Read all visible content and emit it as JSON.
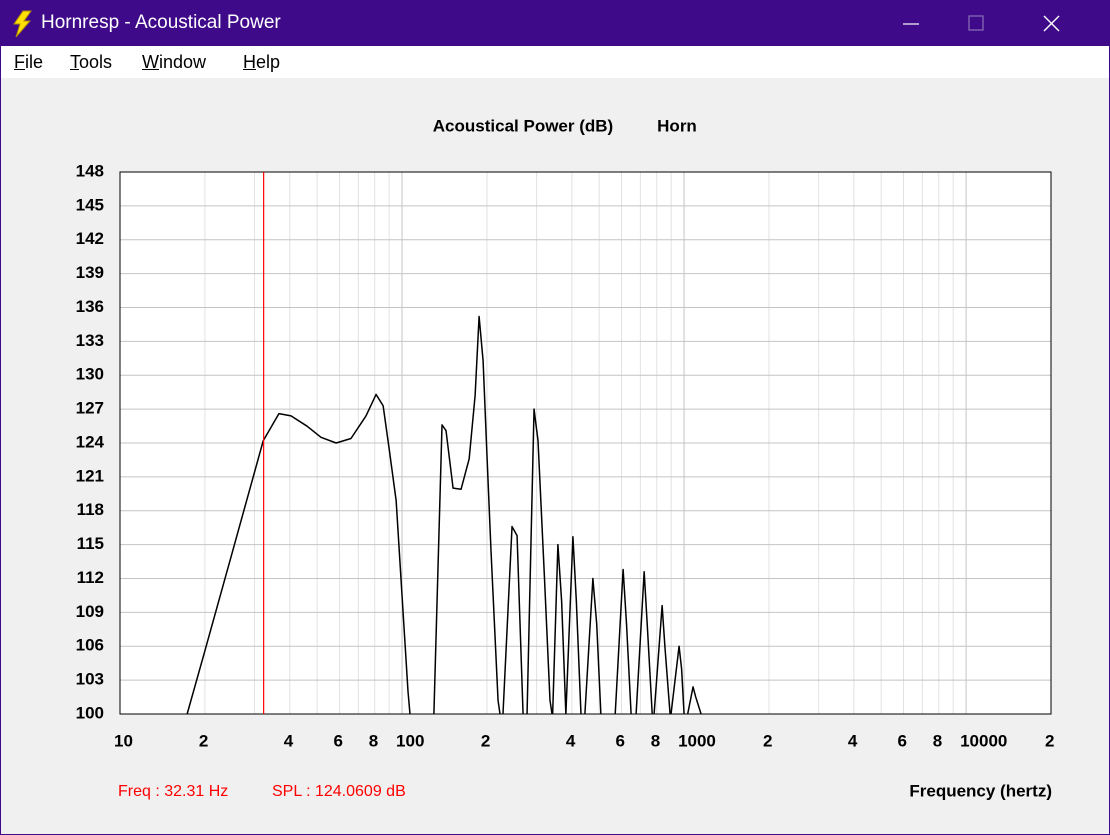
{
  "window": {
    "title": "Hornresp - Acoustical Power"
  },
  "menu": [
    "File",
    "Tools",
    "Window",
    "Help"
  ],
  "chart_data": {
    "type": "line",
    "title": "Acoustical Power (dB)",
    "subtitle": "Horn",
    "x_label": "Frequency (hertz)",
    "xscale": "log",
    "xlim": [
      10,
      20000
    ],
    "ylim": [
      100,
      148
    ],
    "xticks": [
      10,
      {
        "value": 20,
        "label": "2"
      },
      {
        "value": 40,
        "label": "4"
      },
      {
        "value": 60,
        "label": "6"
      },
      {
        "value": 80,
        "label": "8"
      },
      100,
      {
        "value": 200,
        "label": "2"
      },
      {
        "value": 400,
        "label": "4"
      },
      {
        "value": 600,
        "label": "6"
      },
      {
        "value": 800,
        "label": "8"
      },
      1000,
      {
        "value": 2000,
        "label": "2"
      },
      {
        "value": 4000,
        "label": "4"
      },
      {
        "value": 6000,
        "label": "6"
      },
      {
        "value": 8000,
        "label": "8"
      },
      10000,
      {
        "value": 20000,
        "label": "2"
      }
    ],
    "xgrid_minor": [
      30,
      50,
      70,
      90,
      300,
      500,
      700,
      900,
      3000,
      5000,
      7000,
      9000
    ],
    "yticks": [
      100,
      103,
      106,
      109,
      112,
      115,
      118,
      121,
      124,
      127,
      130,
      133,
      136,
      139,
      142,
      145,
      148
    ],
    "grid": true,
    "x": [
      17.3,
      20,
      25,
      32.2,
      36.6,
      40.4,
      46,
      51.6,
      58.4,
      65.9,
      74.5,
      80.9,
      85.7,
      90,
      95.3,
      100,
      105,
      106.7,
      null,
      129.7,
      138.6,
      143.2,
      151.7,
      161.9,
      173,
      181.6,
      187.6,
      193.8,
      200,
      206.8,
      219,
      222.5,
      null,
      228,
      245.5,
      255.8,
      268.6,
      null,
      277.5,
      293.8,
      303.5,
      320,
      334.7,
      340.3,
      null,
      342,
      357,
      368,
      381,
      null,
      381,
      403.6,
      415,
      431,
      null,
      445,
      475,
      490,
      507,
      null,
      570,
      608,
      625,
      649,
      null,
      676,
      722,
      740,
      771,
      null,
      783,
      836,
      855,
      892,
      null,
      899,
      960,
      980,
      1000,
      null,
      1030,
      1076,
      1100,
      1149
    ],
    "series": [
      {
        "color": "#000000",
        "values": [
          100,
          105.6,
          114.3,
          124.2,
          126.6,
          126.4,
          125.5,
          124.5,
          124.0,
          124.4,
          126.4,
          128.3,
          127.3,
          123.5,
          118.9,
          110.5,
          102.0,
          100,
          null,
          100,
          125.6,
          125.1,
          120.0,
          119.9,
          122.6,
          128.2,
          135.2,
          131.3,
          123,
          114.4,
          101.2,
          100,
          null,
          100,
          116.6,
          115.8,
          100,
          null,
          100,
          127.0,
          124.2,
          112,
          101.2,
          100,
          null,
          100,
          115.0,
          110,
          100,
          null,
          100,
          115.7,
          110,
          100,
          null,
          100,
          112.0,
          108,
          100,
          null,
          100,
          112.8,
          108,
          100,
          null,
          100,
          112.6,
          108,
          100,
          null,
          100,
          109.6,
          106,
          100,
          null,
          100,
          106.0,
          104,
          100,
          null,
          100,
          102.4,
          101.5,
          100
        ]
      }
    ],
    "cursor": {
      "x": 32.31,
      "color": "#ff0000",
      "label": "Freq : 32.31 Hz",
      "spl_label": "SPL : 124.0609 dB"
    }
  }
}
